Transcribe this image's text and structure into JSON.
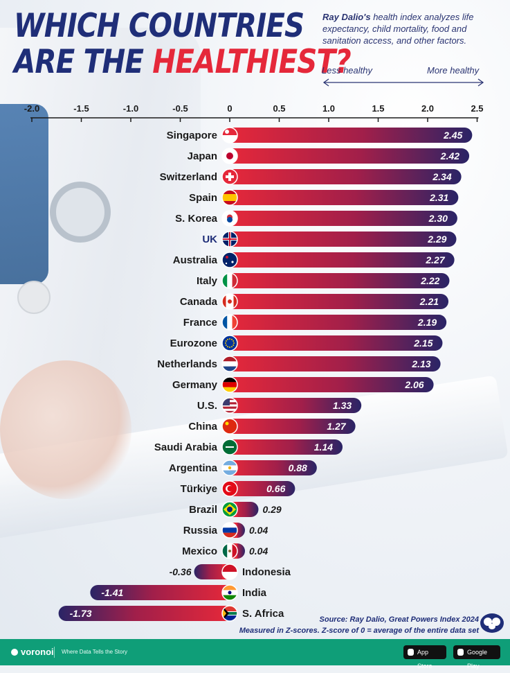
{
  "header": {
    "title_part1": "WHICH COUNTRIES",
    "title_part2": "ARE THE ",
    "title_highlight": "HEALTHIEST?",
    "subtitle_bold": "Ray Dalio's",
    "subtitle_rest": " health index analyzes life expectancy, child mortality, food and sanitation access, and other factors.",
    "less_label": "Less healthy",
    "more_label": "More healthy"
  },
  "chart_data": {
    "type": "bar",
    "orientation": "horizontal",
    "x_ticks": [
      "-2.0",
      "-1.5",
      "-1.0",
      "-0.5",
      "0",
      "0.5",
      "1.0",
      "1.5",
      "2.0",
      "2.5"
    ],
    "x_tick_values": [
      -2.0,
      -1.5,
      -1.0,
      -0.5,
      0,
      0.5,
      1.0,
      1.5,
      2.0,
      2.5
    ],
    "xlim": [
      -2.0,
      2.5
    ],
    "grid": false,
    "legend": "none",
    "categories": [
      "Singapore",
      "Japan",
      "Switzerland",
      "Spain",
      "S. Korea",
      "UK",
      "Australia",
      "Italy",
      "Canada",
      "France",
      "Eurozone",
      "Netherlands",
      "Germany",
      "U.S.",
      "China",
      "Saudi Arabia",
      "Argentina",
      "Türkiye",
      "Brazil",
      "Russia",
      "Mexico",
      "Indonesia",
      "India",
      "S. Africa"
    ],
    "values": [
      2.45,
      2.42,
      2.34,
      2.31,
      2.3,
      2.29,
      2.27,
      2.22,
      2.21,
      2.19,
      2.15,
      2.13,
      2.06,
      1.33,
      1.27,
      1.14,
      0.88,
      0.66,
      0.29,
      0.04,
      0.04,
      -0.36,
      -1.41,
      -1.73
    ],
    "value_labels": [
      "2.45",
      "2.42",
      "2.34",
      "2.31",
      "2.30",
      "2.29",
      "2.27",
      "2.22",
      "2.21",
      "2.19",
      "2.15",
      "2.13",
      "2.06",
      "1.33",
      "1.27",
      "1.14",
      "0.88",
      "0.66",
      "0.29",
      "0.04",
      "0.04",
      "-0.36",
      "-1.41",
      "-1.73"
    ],
    "flag_icons": [
      "singapore-flag-icon",
      "japan-flag-icon",
      "switzerland-flag-icon",
      "spain-flag-icon",
      "south-korea-flag-icon",
      "uk-flag-icon",
      "australia-flag-icon",
      "italy-flag-icon",
      "canada-flag-icon",
      "france-flag-icon",
      "eu-flag-icon",
      "netherlands-flag-icon",
      "germany-flag-icon",
      "usa-flag-icon",
      "china-flag-icon",
      "saudi-arabia-flag-icon",
      "argentina-flag-icon",
      "turkey-flag-icon",
      "brazil-flag-icon",
      "russia-flag-icon",
      "mexico-flag-icon",
      "indonesia-flag-icon",
      "india-flag-icon",
      "south-africa-flag-icon"
    ],
    "colors": {
      "bar_red": "#e5283a",
      "bar_navy": "#2a2466",
      "label_dark": "#1a1a1a",
      "label_uk": "#1f2e78"
    }
  },
  "source": {
    "line1": "Source: Ray Dalio, Great Powers Index 2024",
    "line2": "Measured in Z-scores. Z-score of 0 = average of the entire data set"
  },
  "footer": {
    "brand": "voronoi",
    "tagline": "Where Data Tells the Story",
    "app_store": "App Store",
    "google_play": "Google Play",
    "brand_color": "#0f9e78"
  }
}
